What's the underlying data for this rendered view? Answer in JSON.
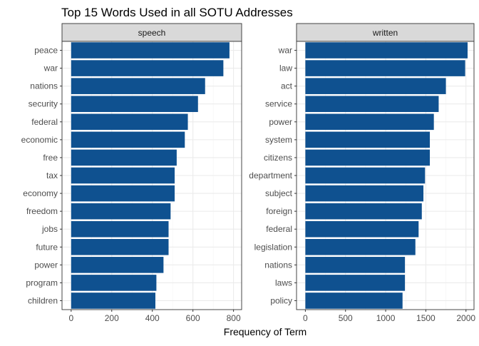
{
  "title": "Top 15 Words Used in all SOTU Addresses",
  "xlabel": "Frequency of Term",
  "colors": {
    "bar": "#0f5190",
    "panel_bg": "#ffffff",
    "strip_bg": "#d9d9d9",
    "border": "#333333",
    "grid_major": "#ebebeb",
    "grid_minor": "#f5f5f5",
    "text": "#000000",
    "axis_text": "#4d4d4d"
  },
  "chart_data": [
    {
      "type": "bar",
      "orientation": "horizontal",
      "facet": "speech",
      "categories": [
        "peace",
        "war",
        "nations",
        "security",
        "federal",
        "economic",
        "free",
        "tax",
        "economy",
        "freedom",
        "jobs",
        "future",
        "power",
        "program",
        "children"
      ],
      "values": [
        780,
        750,
        660,
        625,
        575,
        560,
        520,
        510,
        510,
        490,
        480,
        480,
        455,
        420,
        415
      ],
      "xlim": [
        -45,
        840
      ],
      "xticks": [
        0,
        200,
        400,
        600,
        800
      ],
      "xtick_labels": [
        "0",
        "200",
        "400",
        "600",
        "800"
      ],
      "grid": true
    },
    {
      "type": "bar",
      "orientation": "horizontal",
      "facet": "written",
      "categories": [
        "war",
        "law",
        "act",
        "service",
        "power",
        "system",
        "citizens",
        "department",
        "subject",
        "foreign",
        "federal",
        "legislation",
        "nations",
        "laws",
        "policy"
      ],
      "values": [
        2020,
        1990,
        1750,
        1660,
        1600,
        1550,
        1550,
        1490,
        1470,
        1450,
        1410,
        1370,
        1240,
        1240,
        1210
      ],
      "xlim": [
        -110,
        2100
      ],
      "xticks": [
        0,
        500,
        1000,
        1500,
        2000
      ],
      "xtick_labels": [
        "0",
        "500",
        "1000",
        "1500",
        "2000"
      ],
      "grid": true
    }
  ]
}
